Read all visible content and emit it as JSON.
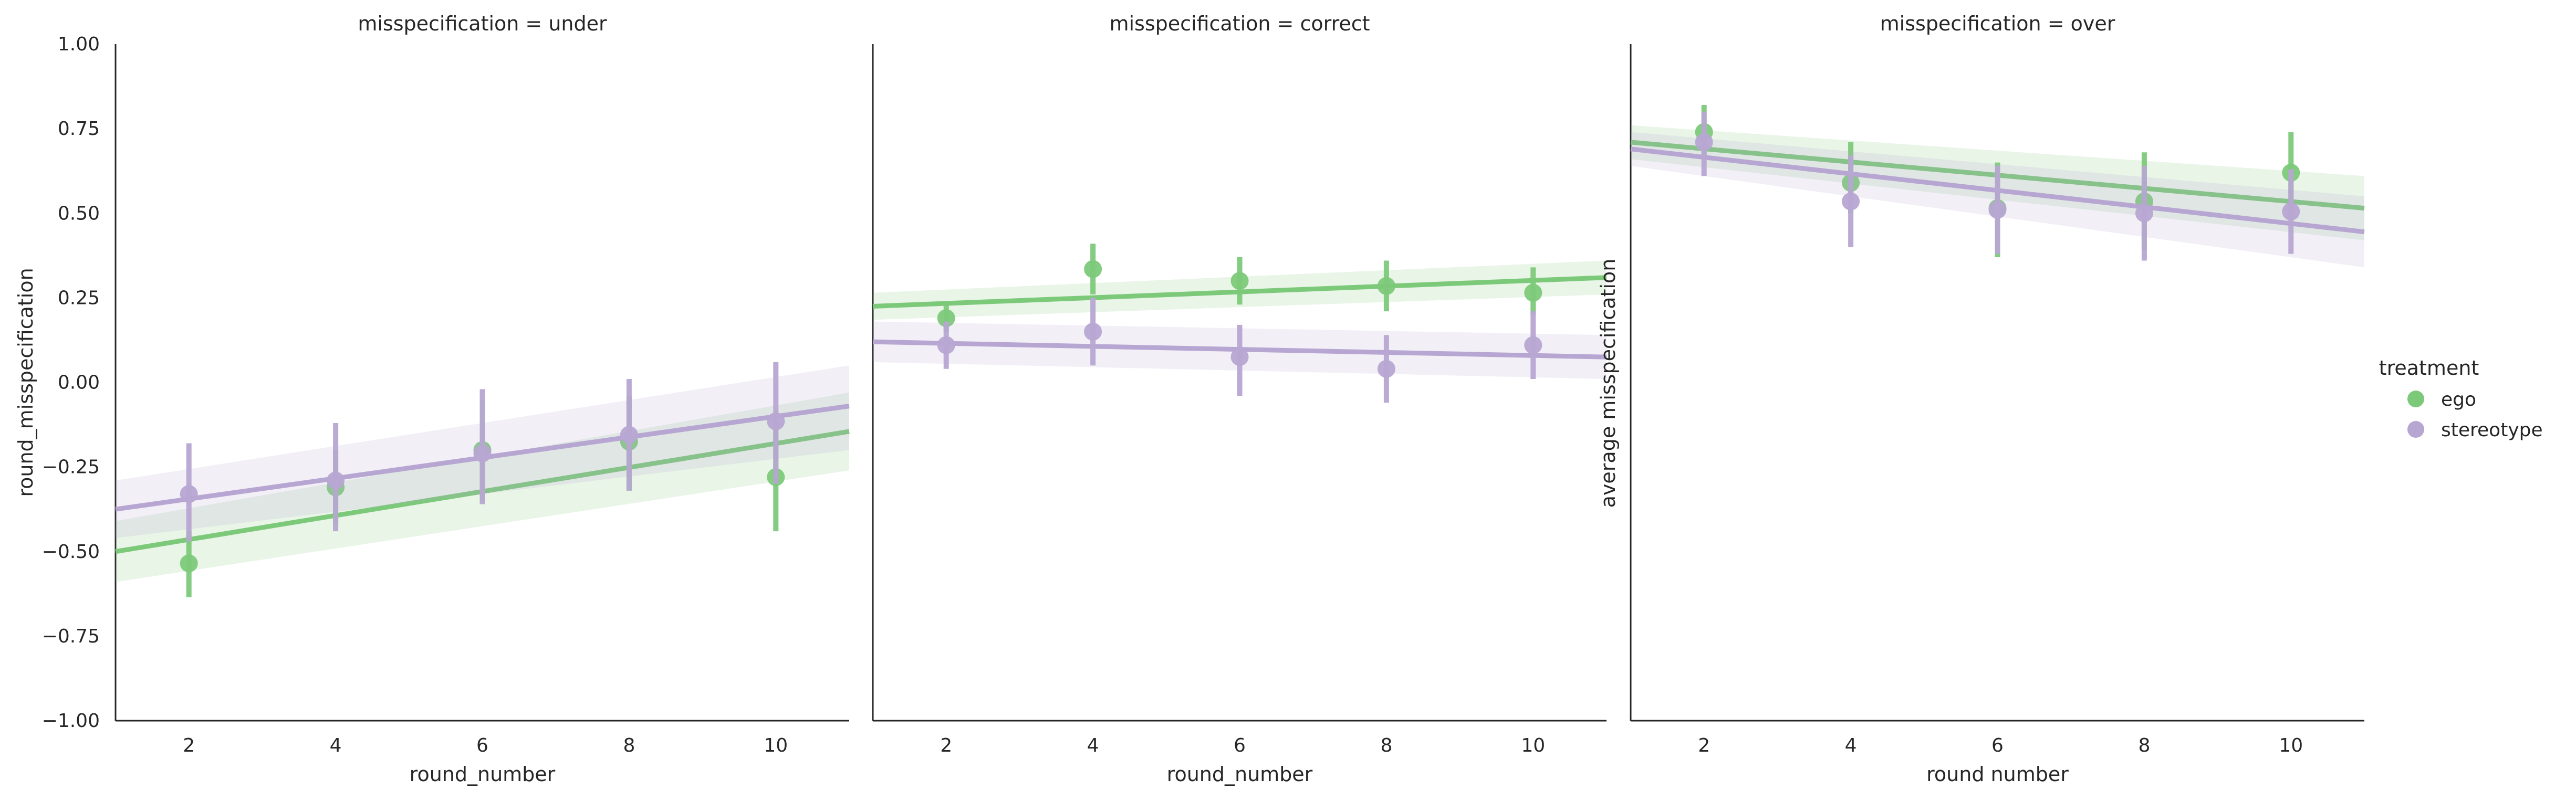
{
  "legend": {
    "title": "treatment",
    "entries": [
      {
        "label": "ego",
        "color": "#7dc97a"
      },
      {
        "label": "stereotype",
        "color": "#b7a6d2"
      }
    ]
  },
  "chart_data": [
    {
      "type": "scatter",
      "title": "misspecification = under",
      "xlabel": "round_number",
      "ylabel": "round_misspecification",
      "x_ticks": [
        "2",
        "4",
        "6",
        "8",
        "10"
      ],
      "y_ticks": [
        "1.00",
        "0.75",
        "0.50",
        "0.25",
        "0.00",
        "−0.25",
        "−0.50",
        "−0.75",
        "−1.00"
      ],
      "xlim": [
        1,
        11
      ],
      "ylim": [
        -1,
        1
      ],
      "grid": false,
      "series": [
        {
          "name": "ego",
          "color": "#7dc97a",
          "x": [
            2,
            4,
            6,
            8,
            10
          ],
          "y": [
            -0.535,
            -0.31,
            -0.2,
            -0.175,
            -0.28
          ],
          "ci_low": [
            -0.635,
            -0.42,
            -0.35,
            -0.32,
            -0.44
          ],
          "ci_high": [
            -0.44,
            -0.2,
            -0.05,
            -0.04,
            -0.12
          ],
          "fit": [
            -0.5,
            -0.145
          ],
          "band_low": [
            -0.59,
            -0.26
          ],
          "band_high": [
            -0.41,
            -0.03
          ]
        },
        {
          "name": "stereotype",
          "color": "#b7a6d2",
          "x": [
            2,
            4,
            6,
            8,
            10
          ],
          "y": [
            -0.33,
            -0.29,
            -0.21,
            -0.155,
            -0.115
          ],
          "ci_low": [
            -0.47,
            -0.44,
            -0.36,
            -0.32,
            -0.3
          ],
          "ci_high": [
            -0.18,
            -0.12,
            -0.02,
            0.01,
            0.06
          ],
          "fit": [
            -0.375,
            -0.07
          ],
          "band_low": [
            -0.46,
            -0.2
          ],
          "band_high": [
            -0.29,
            0.05
          ]
        }
      ]
    },
    {
      "type": "scatter",
      "title": "misspecification = correct",
      "xlabel": "round_number",
      "ylabel": "",
      "x_ticks": [
        "2",
        "4",
        "6",
        "8",
        "10"
      ],
      "y_ticks": [],
      "xlim": [
        1,
        11
      ],
      "ylim": [
        -1,
        1
      ],
      "grid": false,
      "series": [
        {
          "name": "ego",
          "color": "#7dc97a",
          "x": [
            2,
            4,
            6,
            8,
            10
          ],
          "y": [
            0.19,
            0.335,
            0.3,
            0.285,
            0.265
          ],
          "ci_low": [
            0.15,
            0.26,
            0.23,
            0.21,
            0.2
          ],
          "ci_high": [
            0.23,
            0.41,
            0.37,
            0.36,
            0.34
          ],
          "fit": [
            0.225,
            0.31
          ],
          "band_low": [
            0.185,
            0.26
          ],
          "band_high": [
            0.265,
            0.36
          ]
        },
        {
          "name": "stereotype",
          "color": "#b7a6d2",
          "x": [
            2,
            4,
            6,
            8,
            10
          ],
          "y": [
            0.11,
            0.15,
            0.075,
            0.04,
            0.11
          ],
          "ci_low": [
            0.04,
            0.05,
            -0.04,
            -0.06,
            0.01
          ],
          "ci_high": [
            0.18,
            0.25,
            0.17,
            0.14,
            0.21
          ],
          "fit": [
            0.12,
            0.075
          ],
          "band_low": [
            0.06,
            0.01
          ],
          "band_high": [
            0.18,
            0.14
          ]
        }
      ]
    },
    {
      "type": "scatter",
      "title": "misspecification = over",
      "xlabel": "round number",
      "ylabel": "average misspecification",
      "x_ticks": [
        "2",
        "4",
        "6",
        "8",
        "10"
      ],
      "y_ticks": [],
      "xlim": [
        1,
        11
      ],
      "ylim": [
        -1,
        1
      ],
      "grid": false,
      "series": [
        {
          "name": "ego",
          "color": "#7dc97a",
          "x": [
            2,
            4,
            6,
            8,
            10
          ],
          "y": [
            0.74,
            0.59,
            0.515,
            0.535,
            0.62
          ],
          "ci_low": [
            0.66,
            0.5,
            0.37,
            0.39,
            0.5
          ],
          "ci_high": [
            0.82,
            0.71,
            0.65,
            0.68,
            0.74
          ],
          "fit": [
            0.71,
            0.515
          ],
          "band_low": [
            0.66,
            0.42
          ],
          "band_high": [
            0.76,
            0.61
          ]
        },
        {
          "name": "stereotype",
          "color": "#b7a6d2",
          "x": [
            2,
            4,
            6,
            8,
            10
          ],
          "y": [
            0.71,
            0.535,
            0.51,
            0.5,
            0.505
          ],
          "ci_low": [
            0.61,
            0.4,
            0.38,
            0.36,
            0.38
          ],
          "ci_high": [
            0.8,
            0.67,
            0.64,
            0.64,
            0.63
          ],
          "fit": [
            0.69,
            0.445
          ],
          "band_low": [
            0.64,
            0.34
          ],
          "band_high": [
            0.74,
            0.55
          ]
        }
      ]
    }
  ]
}
